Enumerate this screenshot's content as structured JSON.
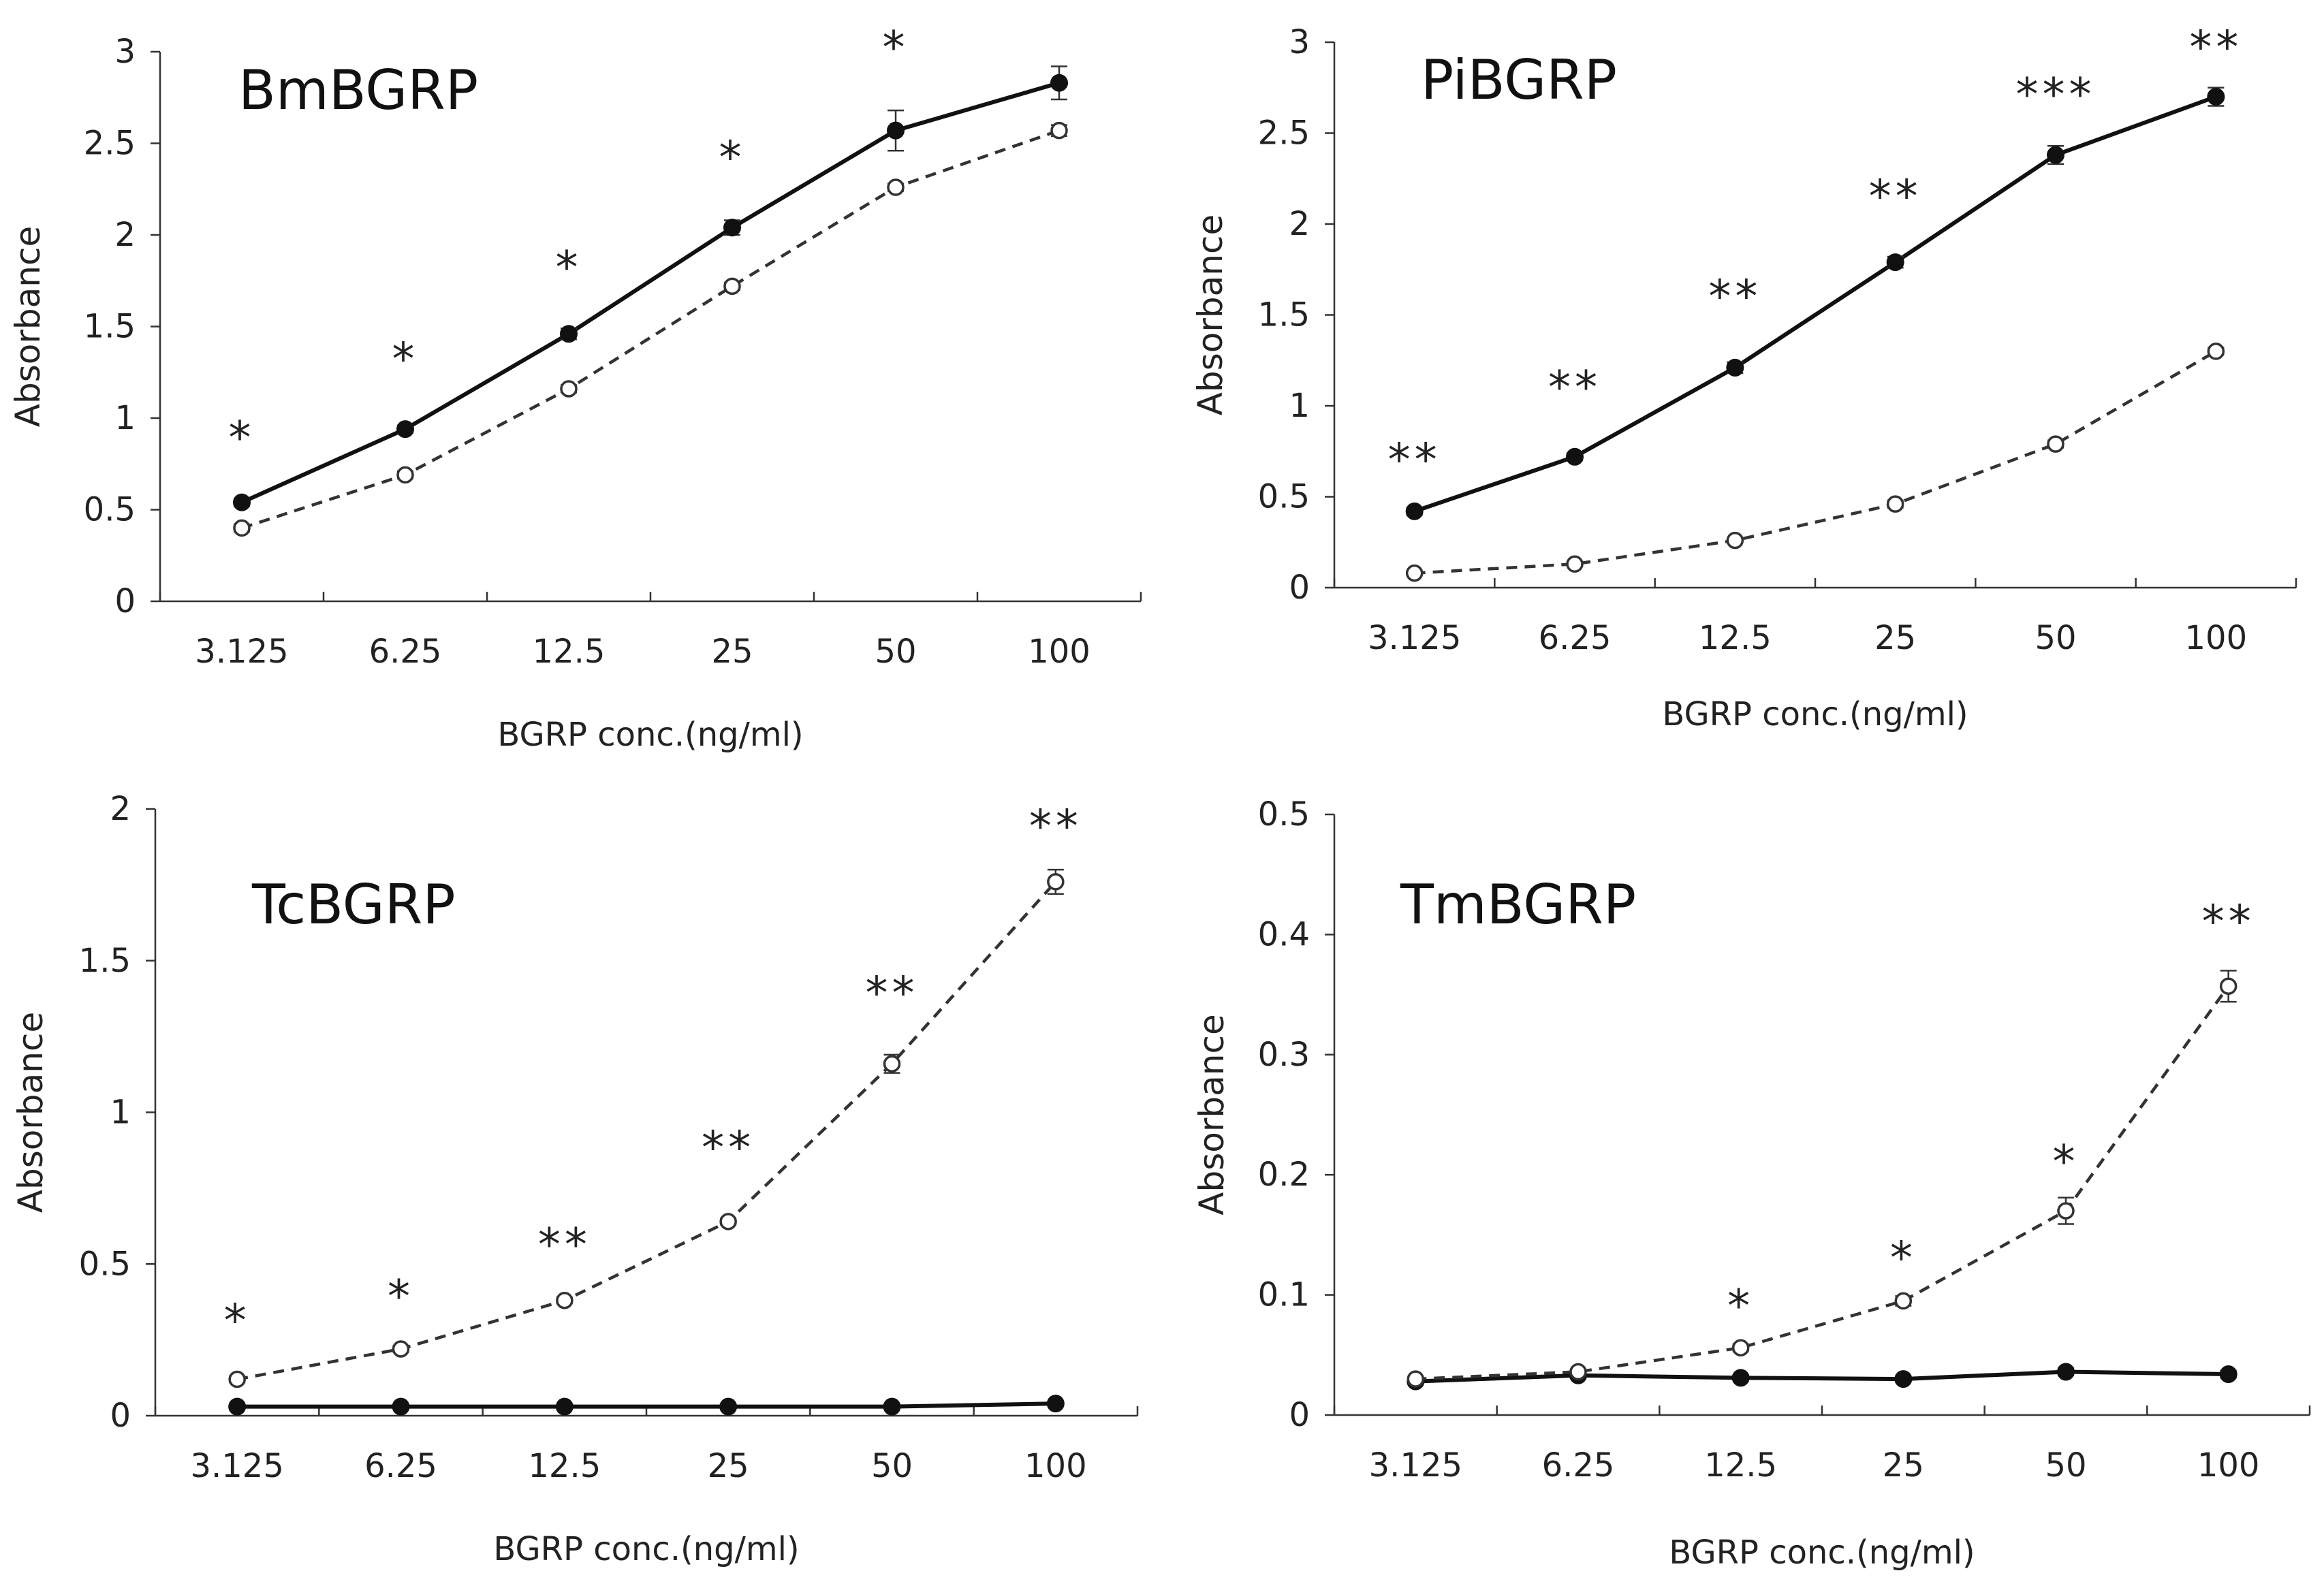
{
  "chart_data": [
    {
      "type": "line",
      "title": "BmBGRP",
      "xlabel": "BGRP conc.(ng/ml)",
      "ylabel": "Absorbance",
      "categories": [
        "3.125",
        "6.25",
        "12.5",
        "25",
        "50",
        "100"
      ],
      "ylim": [
        0,
        3
      ],
      "yticks": [
        "0",
        "0.5",
        "1",
        "1.5",
        "2",
        "2.5",
        "3"
      ],
      "series": [
        {
          "style": "solid-filled",
          "values": [
            0.54,
            0.94,
            1.46,
            2.04,
            2.57,
            2.83
          ],
          "errors": [
            0.02,
            0.02,
            0.03,
            0.04,
            0.11,
            0.09
          ]
        },
        {
          "style": "dashed-open",
          "values": [
            0.4,
            0.69,
            1.16,
            1.72,
            2.26,
            2.57
          ],
          "errors": [
            0.02,
            0.02,
            0.02,
            0.02,
            0.02,
            0.03
          ]
        }
      ],
      "significance": [
        "*",
        "*",
        "*",
        "*",
        "*",
        ""
      ],
      "sig_heights": [
        0.92,
        1.35,
        1.85,
        2.45,
        3.05,
        0
      ]
    },
    {
      "type": "line",
      "title": "PiBGRP",
      "xlabel": "BGRP conc.(ng/ml)",
      "ylabel": "Absorbance",
      "categories": [
        "3.125",
        "6.25",
        "12.5",
        "25",
        "50",
        "100"
      ],
      "ylim": [
        0,
        3
      ],
      "yticks": [
        "0",
        "0.5",
        "1",
        "1.5",
        "2",
        "2.5",
        "3"
      ],
      "series": [
        {
          "style": "solid-filled",
          "values": [
            0.42,
            0.72,
            1.21,
            1.79,
            2.38,
            2.7
          ],
          "errors": [
            0.02,
            0.02,
            0.03,
            0.03,
            0.05,
            0.05
          ]
        },
        {
          "style": "dashed-open",
          "values": [
            0.08,
            0.13,
            0.26,
            0.46,
            0.79,
            1.3
          ],
          "errors": [
            0.01,
            0.01,
            0.01,
            0.02,
            0.02,
            0.02
          ]
        }
      ],
      "significance": [
        "**",
        "**",
        "**",
        "**",
        "***",
        "**"
      ],
      "sig_heights": [
        0.73,
        1.13,
        1.63,
        2.18,
        2.74,
        3.0
      ]
    },
    {
      "type": "line",
      "title": "TcBGRP",
      "xlabel": "BGRP conc.(ng/ml)",
      "ylabel": "Absorbance",
      "categories": [
        "3.125",
        "6.25",
        "12.5",
        "25",
        "50",
        "100"
      ],
      "ylim": [
        0,
        2
      ],
      "yticks": [
        "0",
        "0.5",
        "1",
        "1.5",
        "2"
      ],
      "series": [
        {
          "style": "solid-filled",
          "values": [
            0.03,
            0.03,
            0.03,
            0.03,
            0.03,
            0.04
          ],
          "errors": [
            0.005,
            0.005,
            0.005,
            0.005,
            0.005,
            0.005
          ]
        },
        {
          "style": "dashed-open",
          "values": [
            0.12,
            0.22,
            0.38,
            0.64,
            1.16,
            1.76
          ],
          "errors": [
            0.01,
            0.01,
            0.01,
            0.01,
            0.03,
            0.04
          ]
        }
      ],
      "significance": [
        "*",
        "*",
        "**",
        "**",
        "**",
        "**"
      ],
      "sig_heights": [
        0.33,
        0.41,
        0.58,
        0.9,
        1.41,
        1.96
      ]
    },
    {
      "type": "line",
      "title": "TmBGRP",
      "xlabel": "BGRP conc.(ng/ml)",
      "ylabel": "Absorbance",
      "categories": [
        "3.125",
        "6.25",
        "12.5",
        "25",
        "50",
        "100"
      ],
      "ylim": [
        0,
        0.5
      ],
      "yticks": [
        "0",
        "0.1",
        "0.2",
        "0.3",
        "0.4",
        "0.5"
      ],
      "series": [
        {
          "style": "solid-filled",
          "values": [
            0.028,
            0.033,
            0.031,
            0.03,
            0.036,
            0.034
          ],
          "errors": [
            0.002,
            0.002,
            0.002,
            0.002,
            0.003,
            0.003
          ]
        },
        {
          "style": "dashed-open",
          "values": [
            0.03,
            0.036,
            0.056,
            0.095,
            0.17,
            0.357
          ],
          "errors": [
            0.002,
            0.002,
            0.003,
            0.004,
            0.011,
            0.013
          ]
        }
      ],
      "significance": [
        "",
        "",
        "*",
        "*",
        "*",
        "**"
      ],
      "sig_heights": [
        0,
        0,
        0.095,
        0.135,
        0.215,
        0.415
      ]
    }
  ]
}
